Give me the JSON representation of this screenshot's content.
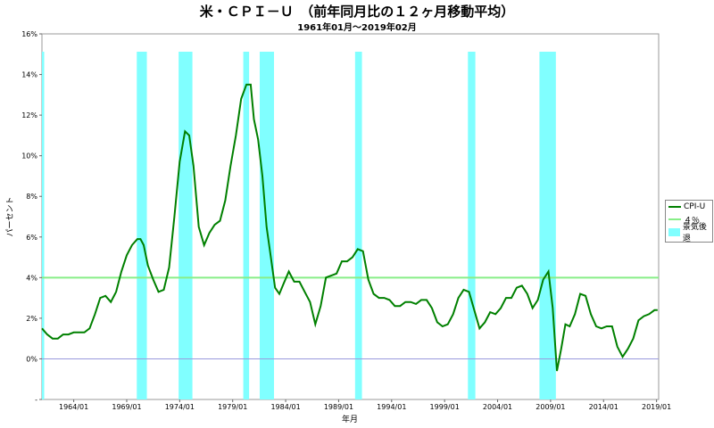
{
  "chart_data": {
    "type": "line",
    "title": "米・ＣＰＩ－Ｕ　（前年同月比の１２ヶ月移動平均）",
    "subtitle": "1961年01月～2019年02月",
    "xlabel": "年月",
    "ylabel": "パーセント",
    "xlim": [
      1961.0,
      2019.2
    ],
    "ylim": [
      -2,
      16
    ],
    "y_ticks": [
      "-",
      "0%",
      "2%",
      "4%",
      "6%",
      "8%",
      "10%",
      "12%",
      "14%",
      "16%"
    ],
    "x_ticks": [
      "1964/01",
      "1969/01",
      "1974/01",
      "1979/01",
      "1984/01",
      "1989/01",
      "1994/01",
      "1999/01",
      "2004/01",
      "2009/01",
      "2014/01",
      "2019/01"
    ],
    "x_tick_years": [
      1964,
      1969,
      1974,
      1979,
      1984,
      1989,
      1994,
      1999,
      2004,
      2009,
      2014,
      2019
    ],
    "legend_position": "right",
    "recessions": [
      [
        1961.0,
        1961.15
      ],
      [
        1969.95,
        1970.9
      ],
      [
        1973.9,
        1975.2
      ],
      [
        1980.0,
        1980.55
      ],
      [
        1981.55,
        1982.9
      ],
      [
        1990.55,
        1991.2
      ],
      [
        2001.2,
        2001.9
      ],
      [
        2007.95,
        2009.5
      ]
    ],
    "series": [
      {
        "name": "CPI-U",
        "color": "#008000",
        "x": [
          1961.0,
          1961.5,
          1962.0,
          1962.5,
          1963.0,
          1963.5,
          1964.0,
          1964.5,
          1965.0,
          1965.5,
          1966.0,
          1966.5,
          1967.0,
          1967.5,
          1968.0,
          1968.5,
          1969.0,
          1969.5,
          1970.0,
          1970.3,
          1970.6,
          1971.0,
          1971.5,
          1972.0,
          1972.5,
          1973.0,
          1973.5,
          1974.0,
          1974.5,
          1974.9,
          1975.3,
          1975.8,
          1976.3,
          1976.8,
          1977.3,
          1977.8,
          1978.3,
          1978.8,
          1979.3,
          1979.8,
          1980.3,
          1980.7,
          1981.0,
          1981.4,
          1981.8,
          1982.2,
          1982.6,
          1983.0,
          1983.4,
          1983.8,
          1984.3,
          1984.8,
          1985.3,
          1985.8,
          1986.3,
          1986.8,
          1987.3,
          1987.8,
          1988.3,
          1988.8,
          1989.3,
          1989.8,
          1990.3,
          1990.8,
          1991.3,
          1991.8,
          1992.3,
          1992.8,
          1993.3,
          1993.8,
          1994.3,
          1994.8,
          1995.3,
          1995.8,
          1996.3,
          1996.8,
          1997.3,
          1997.8,
          1998.3,
          1998.8,
          1999.3,
          1999.8,
          2000.3,
          2000.8,
          2001.3,
          2001.8,
          2002.3,
          2002.8,
          2003.3,
          2003.8,
          2004.3,
          2004.8,
          2005.3,
          2005.8,
          2006.3,
          2006.8,
          2007.3,
          2007.8,
          2008.3,
          2008.8,
          2009.2,
          2009.6,
          2010.0,
          2010.4,
          2010.8,
          2011.3,
          2011.8,
          2012.3,
          2012.8,
          2013.3,
          2013.8,
          2014.3,
          2014.8,
          2015.3,
          2015.8,
          2016.3,
          2016.8,
          2017.3,
          2017.8,
          2018.3,
          2018.8,
          2019.1
        ],
        "values": [
          1.5,
          1.2,
          1.0,
          1.0,
          1.2,
          1.2,
          1.3,
          1.3,
          1.3,
          1.5,
          2.2,
          3.0,
          3.1,
          2.8,
          3.3,
          4.3,
          5.1,
          5.6,
          5.9,
          5.9,
          5.6,
          4.6,
          3.9,
          3.3,
          3.4,
          4.5,
          7.0,
          9.7,
          11.2,
          11.0,
          9.5,
          6.5,
          5.6,
          6.2,
          6.6,
          6.8,
          7.8,
          9.5,
          11.0,
          12.8,
          13.5,
          13.5,
          11.8,
          10.8,
          9.0,
          6.5,
          5.0,
          3.5,
          3.2,
          3.7,
          4.3,
          3.8,
          3.8,
          3.3,
          2.8,
          1.7,
          2.6,
          4.0,
          4.1,
          4.2,
          4.8,
          4.8,
          5.0,
          5.4,
          5.3,
          3.9,
          3.2,
          3.0,
          3.0,
          2.9,
          2.6,
          2.6,
          2.8,
          2.8,
          2.7,
          2.9,
          2.9,
          2.5,
          1.8,
          1.6,
          1.7,
          2.2,
          3.0,
          3.4,
          3.3,
          2.4,
          1.5,
          1.8,
          2.3,
          2.2,
          2.5,
          3.0,
          3.0,
          3.5,
          3.6,
          3.2,
          2.5,
          2.9,
          3.9,
          4.3,
          2.5,
          -0.6,
          0.5,
          1.7,
          1.6,
          2.2,
          3.2,
          3.1,
          2.2,
          1.6,
          1.5,
          1.6,
          1.6,
          0.6,
          0.1,
          0.5,
          1.0,
          1.9,
          2.1,
          2.2,
          2.4,
          2.4
        ]
      },
      {
        "name": "４％",
        "color": "#88ee88",
        "value": 4
      },
      {
        "name": "景気後退",
        "color": "#80ffff"
      }
    ]
  }
}
